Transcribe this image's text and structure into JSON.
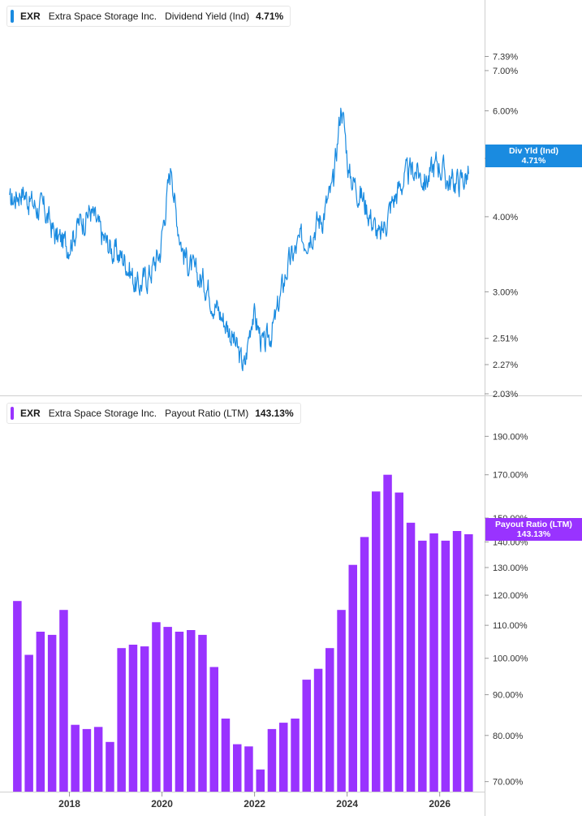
{
  "top_panel": {
    "ticker": "EXR",
    "company": "Extra Space Storage Inc.",
    "metric": "Dividend Yield (Ind)",
    "value": "4.71%",
    "flag_label": "Div Yld (Ind)",
    "flag_value": "4.71%",
    "color": "#1a8be0"
  },
  "bottom_panel": {
    "ticker": "EXR",
    "company": "Extra Space Storage Inc.",
    "metric": "Payout Ratio (LTM)",
    "value": "143.13%",
    "flag_label": "Payout Ratio (LTM)",
    "flag_value": "143.13%",
    "color": "#9933ff"
  },
  "chart_data": [
    {
      "type": "line",
      "scale": "log",
      "ylim": [
        2.03,
        8.1
      ],
      "y_ticks": [
        "7.39%",
        "7.00%",
        "6.00%",
        "5.00%",
        "4.00%",
        "3.00%",
        "2.51%",
        "2.27%",
        "2.03%"
      ],
      "y_tick_values": [
        7.39,
        7.0,
        6.0,
        5.0,
        4.0,
        3.0,
        2.51,
        2.27,
        2.03
      ],
      "series": [
        {
          "name": "Div Yld (Ind)",
          "x": [
            "2016-09",
            "2016-12",
            "2017-03",
            "2017-06",
            "2017-09",
            "2017-12",
            "2018-03",
            "2018-06",
            "2018-09",
            "2018-12",
            "2019-03",
            "2019-06",
            "2019-09",
            "2019-12",
            "2020-03",
            "2020-04",
            "2020-06",
            "2020-09",
            "2020-12",
            "2021-03",
            "2021-06",
            "2021-09",
            "2021-10",
            "2021-12",
            "2022-03",
            "2022-06",
            "2022-09",
            "2022-12",
            "2023-03",
            "2023-06",
            "2023-09",
            "2023-11",
            "2024-01",
            "2024-03",
            "2024-06",
            "2024-09",
            "2024-12",
            "2025-03",
            "2025-06",
            "2025-09",
            "2025-12",
            "2026-03",
            "2026-06",
            "2026-08"
          ],
          "values": [
            4.2,
            4.45,
            4.2,
            4.1,
            3.7,
            3.6,
            3.9,
            4.1,
            3.7,
            3.5,
            3.4,
            3.05,
            3.2,
            3.5,
            4.9,
            4.1,
            3.5,
            3.2,
            3.1,
            2.8,
            2.6,
            2.3,
            2.25,
            2.8,
            2.4,
            2.7,
            3.3,
            3.6,
            3.8,
            4.0,
            4.5,
            6.2,
            4.7,
            4.5,
            4.1,
            3.65,
            4.2,
            4.6,
            4.8,
            4.6,
            4.95,
            4.55,
            4.6,
            4.71
          ]
        }
      ]
    },
    {
      "type": "bar",
      "scale": "log",
      "ylim": [
        68,
        205
      ],
      "y_ticks": [
        "190.00%",
        "170.00%",
        "150.00%",
        "140.00%",
        "130.00%",
        "120.00%",
        "110.00%",
        "100.00%",
        "90.00%",
        "80.00%",
        "70.00%"
      ],
      "y_tick_values": [
        190,
        170,
        150,
        140,
        130,
        120,
        110,
        100,
        90,
        80,
        70
      ],
      "x_ticks": [
        "2018",
        "2020",
        "2022",
        "2024",
        "2026"
      ],
      "series": [
        {
          "name": "Payout Ratio (LTM)",
          "x": [
            "2016-Q4",
            "2017-Q1",
            "2017-Q2",
            "2017-Q3",
            "2017-Q4",
            "2018-Q1",
            "2018-Q2",
            "2018-Q3",
            "2018-Q4",
            "2019-Q1",
            "2019-Q2",
            "2019-Q3",
            "2019-Q4",
            "2020-Q1",
            "2020-Q2",
            "2020-Q3",
            "2020-Q4",
            "2021-Q1",
            "2021-Q2",
            "2021-Q3",
            "2021-Q4",
            "2022-Q1",
            "2022-Q2",
            "2022-Q3",
            "2022-Q4",
            "2023-Q1",
            "2023-Q2",
            "2023-Q3",
            "2023-Q4",
            "2024-Q1",
            "2024-Q2",
            "2024-Q3",
            "2024-Q4",
            "2025-Q1",
            "2025-Q2",
            "2025-Q3",
            "2025-Q4",
            "2026-Q1",
            "2026-Q2",
            "2026-Q3"
          ],
          "values": [
            118,
            101,
            108,
            107,
            115,
            82.5,
            81.5,
            82,
            78.5,
            103,
            104,
            103.5,
            111,
            109.5,
            108,
            108.5,
            107,
            97.5,
            84,
            78,
            77.5,
            72.5,
            81.5,
            83,
            84,
            94,
            97,
            103,
            115,
            131,
            142,
            162,
            170,
            161.5,
            148,
            140.5,
            143.5,
            140.5,
            144.5,
            143.13
          ]
        }
      ]
    }
  ]
}
